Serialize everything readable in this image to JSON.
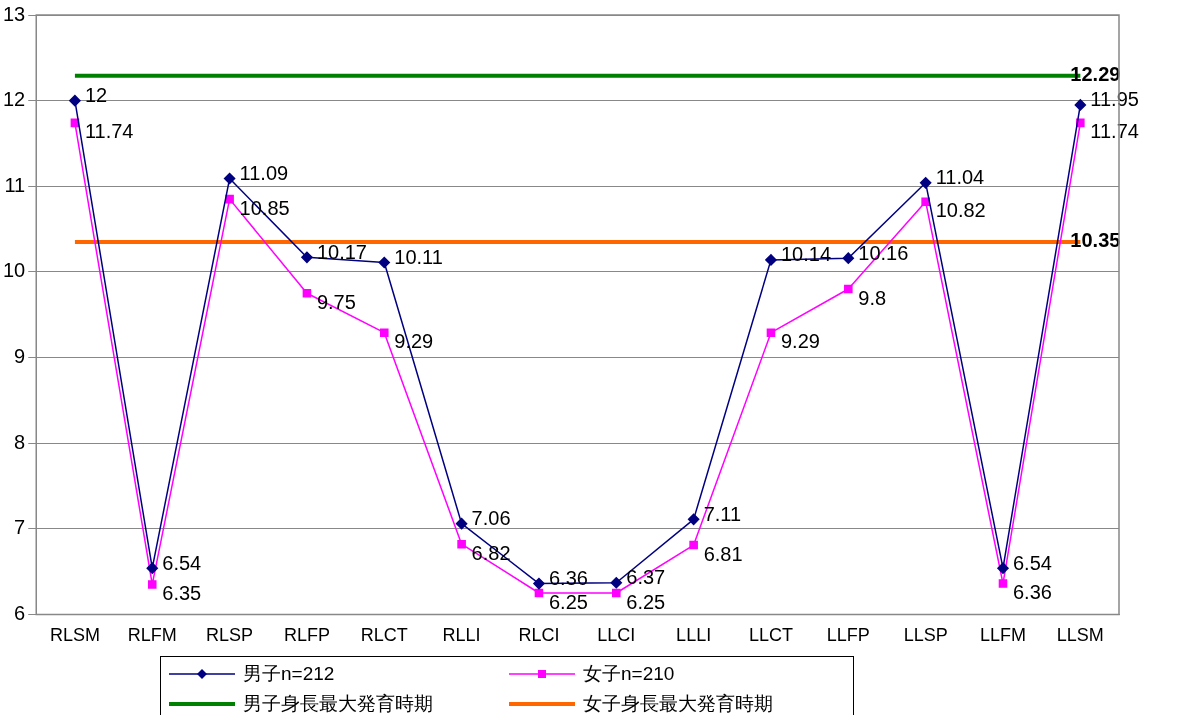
{
  "chart_data": {
    "type": "line",
    "categories": [
      "RLSM",
      "RLFM",
      "RLSP",
      "RLFP",
      "RLCT",
      "RLLI",
      "RLCI",
      "LLCI",
      "LLLI",
      "LLCT",
      "LLFP",
      "LLSP",
      "LLFM",
      "LLSM"
    ],
    "series": [
      {
        "name": "男子n=212",
        "color": "#000080",
        "marker": "diamond",
        "values": [
          12,
          6.54,
          11.09,
          10.17,
          10.11,
          7.06,
          6.36,
          6.37,
          7.11,
          10.14,
          10.16,
          11.04,
          6.54,
          11.95
        ],
        "value_labels": [
          "12",
          "6.54",
          "11.09",
          "10.17",
          "10.11",
          "7.06",
          "6.36",
          "6.37",
          "7.11",
          "10.14",
          "10.16",
          "11.04",
          "6.54",
          "11.95"
        ]
      },
      {
        "name": "女子n=210",
        "color": "#ff00ff",
        "marker": "square",
        "values": [
          11.74,
          6.35,
          10.85,
          9.75,
          9.29,
          6.82,
          6.25,
          6.25,
          6.81,
          9.29,
          9.8,
          10.82,
          6.36,
          11.74
        ],
        "value_labels": [
          "11.74",
          "6.35",
          "10.85",
          "9.75",
          "9.29",
          "6.82",
          "6.25",
          "6.25",
          "6.81",
          "9.29",
          "9.8",
          "10.82",
          "6.36",
          "11.74"
        ]
      },
      {
        "name": "男子身長最大発育時期",
        "color": "#008000",
        "marker": "none",
        "values": [
          12.29,
          12.29,
          12.29,
          12.29,
          12.29,
          12.29,
          12.29,
          12.29,
          12.29,
          12.29,
          12.29,
          12.29,
          12.29,
          12.29
        ],
        "value_labels": [
          null,
          null,
          null,
          null,
          null,
          null,
          null,
          null,
          null,
          null,
          null,
          null,
          null,
          "12.29"
        ]
      },
      {
        "name": "女子身長最大発育時期",
        "color": "#ff6600",
        "marker": "none",
        "values": [
          10.35,
          10.35,
          10.35,
          10.35,
          10.35,
          10.35,
          10.35,
          10.35,
          10.35,
          10.35,
          10.35,
          10.35,
          10.35,
          10.35
        ],
        "value_labels": [
          null,
          null,
          null,
          null,
          null,
          null,
          null,
          null,
          null,
          null,
          null,
          null,
          null,
          "10.35"
        ]
      }
    ],
    "ylim": [
      6,
      13
    ],
    "yticks": [
      6,
      7,
      8,
      9,
      10,
      11,
      12,
      13
    ],
    "grid": "y",
    "legend": "bottom"
  }
}
